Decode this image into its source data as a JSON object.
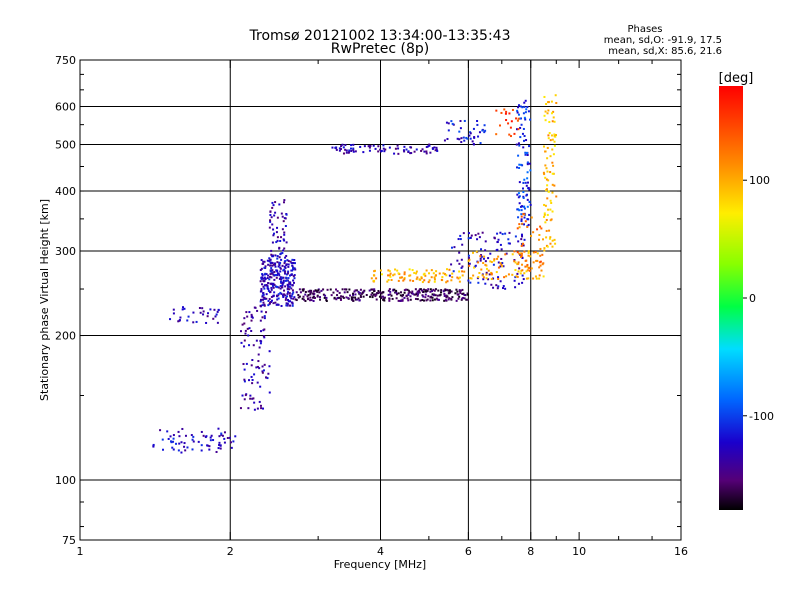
{
  "chart_data": {
    "type": "scatter",
    "title": "Tromsø 20121002 13:34:00-13:35:43",
    "subtitle": "RwPretec (8p)",
    "xlabel": "Frequency [MHz]",
    "ylabel": "Stationary phase Virtual Height [km]",
    "x_scale": "log",
    "y_scale": "log",
    "xlim": [
      1,
      16
    ],
    "ylim": [
      75,
      750
    ],
    "x_ticks": [
      1,
      2,
      4,
      6,
      8,
      10,
      16
    ],
    "y_ticks": [
      75,
      100,
      200,
      300,
      400,
      500,
      600,
      750
    ],
    "x_grid": [
      2,
      4,
      6,
      8
    ],
    "y_grid": [
      100,
      200,
      300,
      400,
      500,
      600
    ],
    "grid": true,
    "stats_title": "Phases",
    "stats_lines": [
      "mean, sd,O: -91.9, 17.5",
      "mean, sd,X:  85.6, 21.6"
    ],
    "colorbar": {
      "label": "[deg]",
      "range": [
        -180,
        180
      ],
      "ticks": [
        100,
        0,
        -100
      ],
      "colormap": "rainbow"
    },
    "series": [
      {
        "label": "O-mode",
        "mean_phase": -91.9,
        "segments": [
          {
            "f": [
              1.4,
              2.05
            ],
            "h": [
              114,
              128
            ],
            "phase": -110,
            "n": 70
          },
          {
            "f": [
              1.5,
              1.9
            ],
            "h": [
              212,
              230
            ],
            "phase": -115,
            "n": 32
          },
          {
            "f": [
              2.3,
              2.7
            ],
            "h": [
              230,
              290
            ],
            "phase": -112,
            "n": 280
          },
          {
            "f": [
              2.4,
              2.6
            ],
            "h": [
              290,
              385
            ],
            "phase": -118,
            "n": 60
          },
          {
            "f": [
              2.1,
              2.4
            ],
            "h": [
              140,
              230
            ],
            "phase": -120,
            "n": 90
          },
          {
            "f": [
              2.7,
              6.0
            ],
            "h": [
              236,
              250
            ],
            "phase": -150,
            "n": 320
          },
          {
            "f": [
              5.5,
              7.8
            ],
            "h": [
              250,
              330
            ],
            "phase": -110,
            "n": 110
          },
          {
            "f": [
              7.5,
              8.0
            ],
            "h": [
              330,
              620
            ],
            "phase": -90,
            "n": 100
          },
          {
            "f": [
              3.2,
              5.3
            ],
            "h": [
              478,
              500
            ],
            "phase": -120,
            "n": 80
          },
          {
            "f": [
              5.3,
              6.5
            ],
            "h": [
              500,
              560
            ],
            "phase": -100,
            "n": 40
          }
        ]
      },
      {
        "label": "X-mode",
        "mean_phase": 85.6,
        "segments": [
          {
            "f": [
              3.8,
              5.9
            ],
            "h": [
              258,
              275
            ],
            "phase": 105,
            "n": 90
          },
          {
            "f": [
              6.0,
              8.5
            ],
            "h": [
              262,
              300
            ],
            "phase": 110,
            "n": 90
          },
          {
            "f": [
              8.5,
              9.0
            ],
            "h": [
              300,
              640
            ],
            "phase": 100,
            "n": 90
          },
          {
            "f": [
              7.5,
              8.5
            ],
            "h": [
              270,
              360
            ],
            "phase": 130,
            "n": 40
          },
          {
            "f": [
              6.8,
              7.6
            ],
            "h": [
              520,
              600
            ],
            "phase": 150,
            "n": 20
          }
        ]
      }
    ]
  }
}
